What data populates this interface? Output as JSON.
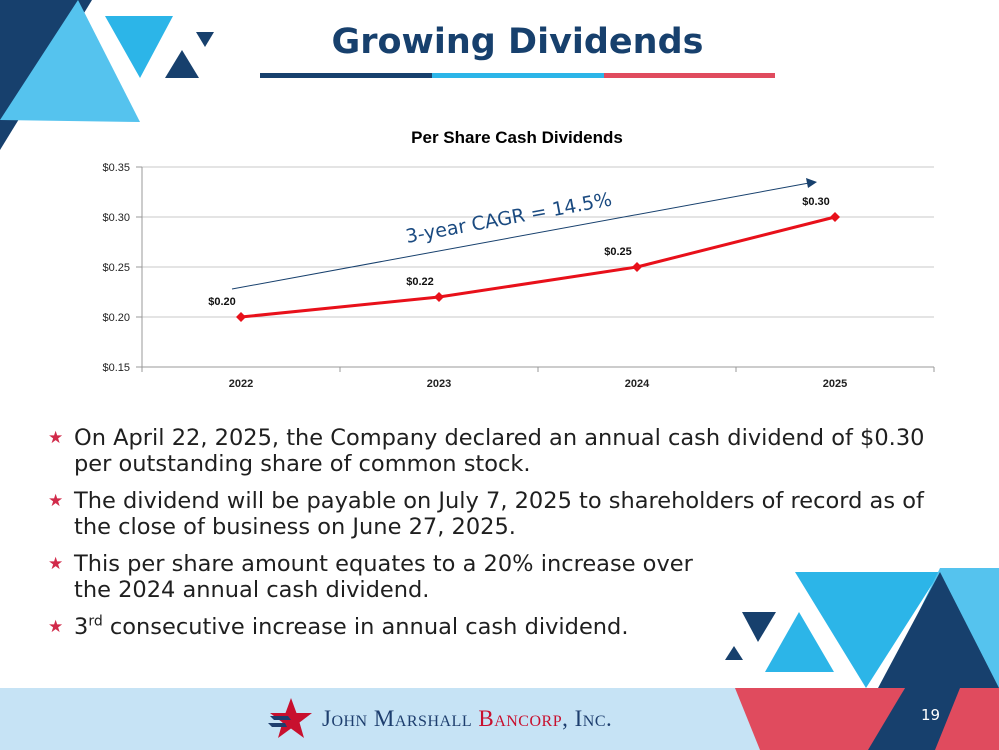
{
  "title": "Growing Dividends",
  "colors": {
    "navy": "#17406d",
    "light_blue": "#2cb5e8",
    "red": "#e04b5e",
    "line_red": "#e8101a"
  },
  "chart_data": {
    "type": "line",
    "title": "Per Share Cash Dividends",
    "categories": [
      "2022",
      "2023",
      "2024",
      "2025"
    ],
    "values": [
      0.2,
      0.22,
      0.25,
      0.3
    ],
    "value_labels": [
      "$0.20",
      "$0.22",
      "$0.25",
      "$0.30"
    ],
    "ylim": [
      0.15,
      0.35
    ],
    "yticks": [
      0.15,
      0.2,
      0.25,
      0.3,
      0.35
    ],
    "ytick_labels": [
      "$0.15",
      "$0.20",
      "$0.25",
      "$0.30",
      "$0.35"
    ],
    "grid": true,
    "annotation": "3-year CAGR = 14.5%"
  },
  "bullets": [
    {
      "text": "On April 22, 2025, the Company declared an annual cash dividend of $0.30 per outstanding share of common stock."
    },
    {
      "text": "The dividend will be payable on July 7, 2025 to shareholders of record as of the close of business on June 27, 2025."
    },
    {
      "text": "This per share amount equates to a 20% increase over the 2024 annual cash dividend."
    },
    {
      "pre": "3",
      "sup": "rd",
      "post": " consecutive increase in annual cash dividend."
    }
  ],
  "bullet_icon": "star-icon",
  "footer": {
    "logo_text_blue": "John Marshall",
    "logo_text_red": "Bancorp",
    "logo_text_tail": ", Inc.",
    "page_number": "19"
  }
}
